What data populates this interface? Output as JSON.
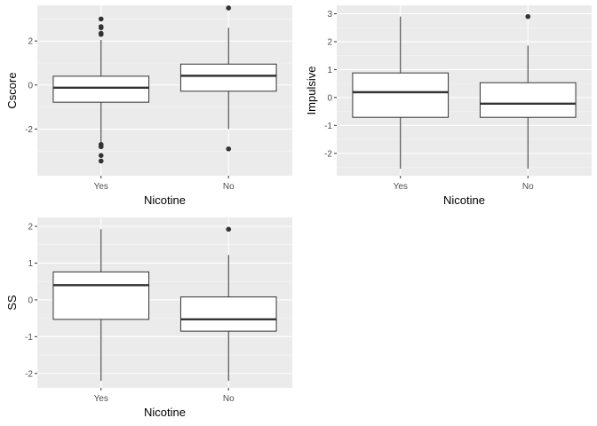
{
  "colors": {
    "panel_bg": "#ebebeb",
    "grid_major": "#ffffff",
    "grid_minor": "#f5f5f5",
    "box_fill": "#ffffff",
    "box_line": "#333333",
    "outlier": "#333333",
    "tick_text": "#4d4d4d",
    "title_text": "#000000"
  },
  "chart_data": [
    {
      "type": "boxplot",
      "xlabel": "Nicotine",
      "ylabel": "Cscore",
      "categories": [
        "Yes",
        "No"
      ],
      "ylim": [
        -3.8,
        3.3
      ],
      "yticks": [
        -2,
        0,
        2
      ],
      "ytick_labels": [
        "-2",
        "0",
        "2"
      ],
      "grid": true,
      "boxes": [
        {
          "category": "Yes",
          "whisker_low": -2.6,
          "q1": -0.78,
          "median": -0.12,
          "q3": 0.4,
          "whisker_high": 2.05,
          "outliers": [
            3.0,
            2.65,
            2.6,
            2.35,
            2.3,
            -2.7,
            -2.8,
            -3.2,
            -3.45
          ]
        },
        {
          "category": "No",
          "whisker_low": -2.0,
          "q1": -0.28,
          "median": 0.42,
          "q3": 0.95,
          "whisker_high": 2.6,
          "outliers": [
            3.5,
            -2.9
          ]
        }
      ]
    },
    {
      "type": "boxplot",
      "xlabel": "Nicotine",
      "ylabel": "Impulsive",
      "categories": [
        "Yes",
        "No"
      ],
      "ylim": [
        -2.55,
        3.05
      ],
      "yticks": [
        -2,
        -1,
        0,
        1,
        2,
        3
      ],
      "ytick_labels": [
        "-2",
        "-1",
        "0",
        "1",
        "2",
        "3"
      ],
      "grid": true,
      "boxes": [
        {
          "category": "Yes",
          "whisker_low": -2.55,
          "q1": -0.71,
          "median": 0.19,
          "q3": 0.88,
          "whisker_high": 2.9,
          "outliers": []
        },
        {
          "category": "No",
          "whisker_low": -2.55,
          "q1": -0.71,
          "median": -0.22,
          "q3": 0.53,
          "whisker_high": 1.86,
          "outliers": [
            2.9
          ]
        }
      ]
    },
    {
      "type": "boxplot",
      "xlabel": "Nicotine",
      "ylabel": "SS",
      "categories": [
        "Yes",
        "No"
      ],
      "ylim": [
        -2.2,
        2.05
      ],
      "yticks": [
        -2,
        -1,
        0,
        1,
        2
      ],
      "ytick_labels": [
        "-2",
        "-1",
        "0",
        "1",
        "2"
      ],
      "grid": true,
      "boxes": [
        {
          "category": "Yes",
          "whisker_low": -2.2,
          "q1": -0.53,
          "median": 0.4,
          "q3": 0.76,
          "whisker_high": 1.92,
          "outliers": []
        },
        {
          "category": "No",
          "whisker_low": -2.2,
          "q1": -0.85,
          "median": -0.53,
          "q3": 0.08,
          "whisker_high": 1.22,
          "outliers": [
            1.92
          ]
        }
      ]
    }
  ]
}
